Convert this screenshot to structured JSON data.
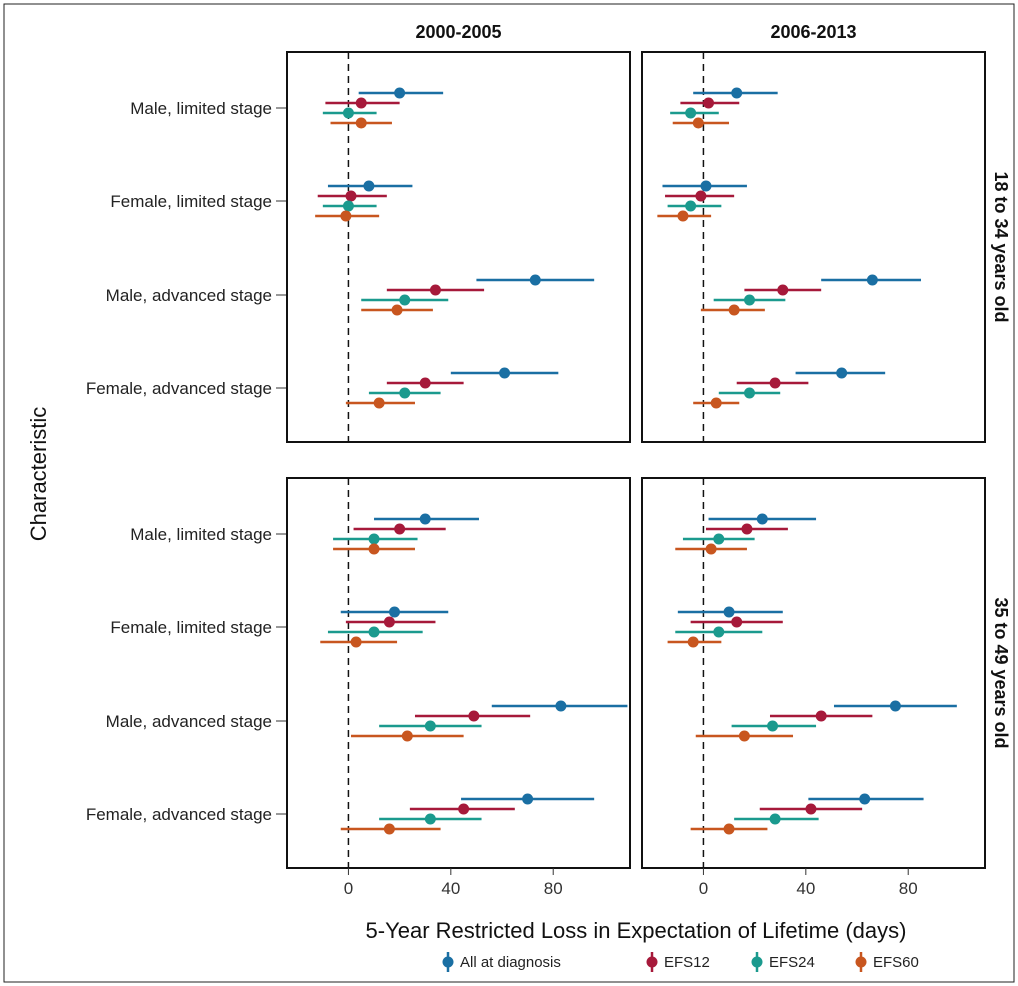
{
  "chart_data": {
    "type": "forest",
    "xlabel": "5-Year Restricted Loss in Expectation of Lifetime (days)",
    "ylabel": "Characteristic",
    "x_ticks": [
      0,
      40,
      80
    ],
    "xlim": [
      -24,
      110
    ],
    "reference_line": 0,
    "columns": [
      "2000-2005",
      "2006-2013"
    ],
    "rows": [
      "18 to 34 years old",
      "35 to 49 years old"
    ],
    "categories": [
      "Male, limited stage",
      "Female, limited stage",
      "Male, advanced stage",
      "Female, advanced stage"
    ],
    "legend": [
      {
        "name": "All at diagnosis",
        "color": "#1a6fa3"
      },
      {
        "name": "EFS12",
        "color": "#a6193a"
      },
      {
        "name": "EFS24",
        "color": "#1b9a8e"
      },
      {
        "name": "EFS60",
        "color": "#c8561f"
      }
    ],
    "panels": [
      {
        "row": "18 to 34 years old",
        "column": "2000-2005",
        "groups": [
          {
            "category": "Male, limited stage",
            "points": [
              {
                "series": "All at diagnosis",
                "est": 20,
                "lo": 4,
                "hi": 37
              },
              {
                "series": "EFS12",
                "est": 5,
                "lo": -9,
                "hi": 20
              },
              {
                "series": "EFS24",
                "est": 0,
                "lo": -10,
                "hi": 11
              },
              {
                "series": "EFS60",
                "est": 5,
                "lo": -7,
                "hi": 17
              }
            ]
          },
          {
            "category": "Female, limited stage",
            "points": [
              {
                "series": "All at diagnosis",
                "est": 8,
                "lo": -8,
                "hi": 25
              },
              {
                "series": "EFS12",
                "est": 1,
                "lo": -12,
                "hi": 15
              },
              {
                "series": "EFS24",
                "est": 0,
                "lo": -10,
                "hi": 11
              },
              {
                "series": "EFS60",
                "est": -1,
                "lo": -13,
                "hi": 12
              }
            ]
          },
          {
            "category": "Male, advanced stage",
            "points": [
              {
                "series": "All at diagnosis",
                "est": 73,
                "lo": 50,
                "hi": 96
              },
              {
                "series": "EFS12",
                "est": 34,
                "lo": 15,
                "hi": 53
              },
              {
                "series": "EFS24",
                "est": 22,
                "lo": 5,
                "hi": 39
              },
              {
                "series": "EFS60",
                "est": 19,
                "lo": 5,
                "hi": 33
              }
            ]
          },
          {
            "category": "Female, advanced stage",
            "points": [
              {
                "series": "All at diagnosis",
                "est": 61,
                "lo": 40,
                "hi": 82
              },
              {
                "series": "EFS12",
                "est": 30,
                "lo": 15,
                "hi": 45
              },
              {
                "series": "EFS24",
                "est": 22,
                "lo": 8,
                "hi": 36
              },
              {
                "series": "EFS60",
                "est": 12,
                "lo": -1,
                "hi": 26
              }
            ]
          }
        ]
      },
      {
        "row": "18 to 34 years old",
        "column": "2006-2013",
        "groups": [
          {
            "category": "Male, limited stage",
            "points": [
              {
                "series": "All at diagnosis",
                "est": 13,
                "lo": -4,
                "hi": 29
              },
              {
                "series": "EFS12",
                "est": 2,
                "lo": -9,
                "hi": 14
              },
              {
                "series": "EFS24",
                "est": -5,
                "lo": -13,
                "hi": 6
              },
              {
                "series": "EFS60",
                "est": -2,
                "lo": -12,
                "hi": 10
              }
            ]
          },
          {
            "category": "Female, limited stage",
            "points": [
              {
                "series": "All at diagnosis",
                "est": 1,
                "lo": -16,
                "hi": 17
              },
              {
                "series": "EFS12",
                "est": -1,
                "lo": -15,
                "hi": 12
              },
              {
                "series": "EFS24",
                "est": -5,
                "lo": -14,
                "hi": 7
              },
              {
                "series": "EFS60",
                "est": -8,
                "lo": -18,
                "hi": 3
              }
            ]
          },
          {
            "category": "Male, advanced stage",
            "points": [
              {
                "series": "All at diagnosis",
                "est": 66,
                "lo": 46,
                "hi": 85
              },
              {
                "series": "EFS12",
                "est": 31,
                "lo": 16,
                "hi": 46
              },
              {
                "series": "EFS24",
                "est": 18,
                "lo": 4,
                "hi": 32
              },
              {
                "series": "EFS60",
                "est": 12,
                "lo": -1,
                "hi": 24
              }
            ]
          },
          {
            "category": "Female, advanced stage",
            "points": [
              {
                "series": "All at diagnosis",
                "est": 54,
                "lo": 36,
                "hi": 71
              },
              {
                "series": "EFS12",
                "est": 28,
                "lo": 13,
                "hi": 41
              },
              {
                "series": "EFS24",
                "est": 18,
                "lo": 6,
                "hi": 30
              },
              {
                "series": "EFS60",
                "est": 5,
                "lo": -4,
                "hi": 14
              }
            ]
          }
        ]
      },
      {
        "row": "35 to 49 years old",
        "column": "2000-2005",
        "groups": [
          {
            "category": "Male, limited stage",
            "points": [
              {
                "series": "All at diagnosis",
                "est": 30,
                "lo": 10,
                "hi": 51
              },
              {
                "series": "EFS12",
                "est": 20,
                "lo": 2,
                "hi": 38
              },
              {
                "series": "EFS24",
                "est": 10,
                "lo": -6,
                "hi": 27
              },
              {
                "series": "EFS60",
                "est": 10,
                "lo": -6,
                "hi": 26
              }
            ]
          },
          {
            "category": "Female, limited stage",
            "points": [
              {
                "series": "All at diagnosis",
                "est": 18,
                "lo": -3,
                "hi": 39
              },
              {
                "series": "EFS12",
                "est": 16,
                "lo": -1,
                "hi": 34
              },
              {
                "series": "EFS24",
                "est": 10,
                "lo": -8,
                "hi": 29
              },
              {
                "series": "EFS60",
                "est": 3,
                "lo": -11,
                "hi": 19
              }
            ]
          },
          {
            "category": "Male, advanced stage",
            "points": [
              {
                "series": "All at diagnosis",
                "est": 83,
                "lo": 56,
                "hi": 109
              },
              {
                "series": "EFS12",
                "est": 49,
                "lo": 26,
                "hi": 71
              },
              {
                "series": "EFS24",
                "est": 32,
                "lo": 12,
                "hi": 52
              },
              {
                "series": "EFS60",
                "est": 23,
                "lo": 1,
                "hi": 45
              }
            ]
          },
          {
            "category": "Female, advanced stage",
            "points": [
              {
                "series": "All at diagnosis",
                "est": 70,
                "lo": 44,
                "hi": 96
              },
              {
                "series": "EFS12",
                "est": 45,
                "lo": 24,
                "hi": 65
              },
              {
                "series": "EFS24",
                "est": 32,
                "lo": 12,
                "hi": 52
              },
              {
                "series": "EFS60",
                "est": 16,
                "lo": -3,
                "hi": 36
              }
            ]
          }
        ]
      },
      {
        "row": "35 to 49 years old",
        "column": "2006-2013",
        "groups": [
          {
            "category": "Male, limited stage",
            "points": [
              {
                "series": "All at diagnosis",
                "est": 23,
                "lo": 2,
                "hi": 44
              },
              {
                "series": "EFS12",
                "est": 17,
                "lo": 1,
                "hi": 33
              },
              {
                "series": "EFS24",
                "est": 6,
                "lo": -8,
                "hi": 20
              },
              {
                "series": "EFS60",
                "est": 3,
                "lo": -11,
                "hi": 17
              }
            ]
          },
          {
            "category": "Female, limited stage",
            "points": [
              {
                "series": "All at diagnosis",
                "est": 10,
                "lo": -10,
                "hi": 31
              },
              {
                "series": "EFS12",
                "est": 13,
                "lo": -5,
                "hi": 31
              },
              {
                "series": "EFS24",
                "est": 6,
                "lo": -11,
                "hi": 23
              },
              {
                "series": "EFS60",
                "est": -4,
                "lo": -14,
                "hi": 7
              }
            ]
          },
          {
            "category": "Male, advanced stage",
            "points": [
              {
                "series": "All at diagnosis",
                "est": 75,
                "lo": 51,
                "hi": 99
              },
              {
                "series": "EFS12",
                "est": 46,
                "lo": 26,
                "hi": 66
              },
              {
                "series": "EFS24",
                "est": 27,
                "lo": 11,
                "hi": 44
              },
              {
                "series": "EFS60",
                "est": 16,
                "lo": -3,
                "hi": 35
              }
            ]
          },
          {
            "category": "Female, advanced stage",
            "points": [
              {
                "series": "All at diagnosis",
                "est": 63,
                "lo": 41,
                "hi": 86
              },
              {
                "series": "EFS12",
                "est": 42,
                "lo": 22,
                "hi": 62
              },
              {
                "series": "EFS24",
                "est": 28,
                "lo": 12,
                "hi": 45
              },
              {
                "series": "EFS60",
                "est": 10,
                "lo": -5,
                "hi": 25
              }
            ]
          }
        ]
      }
    ]
  }
}
